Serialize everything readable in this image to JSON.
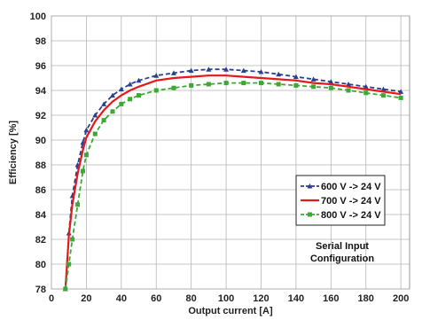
{
  "chart_data": {
    "type": "line",
    "xlabel": "Output current [A]",
    "ylabel": "Efficiency [%]",
    "xlim": [
      0,
      205
    ],
    "ylim": [
      78,
      100
    ],
    "xticks": [
      0,
      20,
      40,
      60,
      80,
      100,
      120,
      140,
      160,
      180,
      200
    ],
    "yticks": [
      78,
      80,
      82,
      84,
      86,
      88,
      90,
      92,
      94,
      96,
      98,
      100
    ],
    "grid": true,
    "legend_position": "right",
    "annotation": [
      "Serial Input",
      "Configuration"
    ],
    "series": [
      {
        "name": "600 V -> 24 V",
        "color": "#2b3f8f",
        "style": "dashed",
        "marker": "triangle",
        "x": [
          8,
          10,
          12,
          15,
          18,
          20,
          25,
          30,
          35,
          40,
          45,
          50,
          60,
          70,
          80,
          90,
          100,
          110,
          120,
          130,
          140,
          150,
          160,
          170,
          180,
          190,
          200
        ],
        "y": [
          78,
          82.5,
          85.5,
          88.0,
          89.8,
          90.8,
          92.0,
          92.9,
          93.6,
          94.1,
          94.5,
          94.8,
          95.2,
          95.4,
          95.6,
          95.7,
          95.7,
          95.6,
          95.5,
          95.3,
          95.1,
          94.9,
          94.7,
          94.5,
          94.3,
          94.1,
          93.9
        ]
      },
      {
        "name": "700 V -> 24 V",
        "color": "#e31a1c",
        "style": "solid",
        "marker": "none",
        "x": [
          8,
          10,
          12,
          15,
          18,
          20,
          25,
          30,
          35,
          40,
          45,
          50,
          60,
          70,
          80,
          90,
          100,
          110,
          120,
          130,
          140,
          150,
          160,
          170,
          180,
          190,
          200
        ],
        "y": [
          78,
          82.3,
          84.8,
          87.3,
          89.2,
          90.2,
          91.5,
          92.4,
          93.1,
          93.6,
          94.0,
          94.3,
          94.8,
          95.0,
          95.1,
          95.2,
          95.2,
          95.1,
          95.0,
          94.9,
          94.8,
          94.6,
          94.5,
          94.3,
          94.1,
          93.9,
          93.7
        ]
      },
      {
        "name": "800 V -> 24 V",
        "color": "#3aaa35",
        "style": "dashed",
        "marker": "square",
        "x": [
          8,
          10,
          12,
          15,
          18,
          20,
          25,
          30,
          35,
          40,
          45,
          50,
          60,
          70,
          80,
          90,
          100,
          110,
          120,
          130,
          140,
          150,
          160,
          170,
          180,
          190,
          200
        ],
        "y": [
          78,
          80.0,
          82.0,
          84.8,
          87.5,
          88.8,
          90.5,
          91.6,
          92.3,
          92.9,
          93.3,
          93.6,
          94.0,
          94.2,
          94.4,
          94.5,
          94.6,
          94.6,
          94.6,
          94.5,
          94.4,
          94.3,
          94.2,
          94.0,
          93.8,
          93.6,
          93.4
        ]
      }
    ]
  }
}
